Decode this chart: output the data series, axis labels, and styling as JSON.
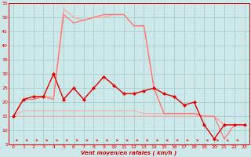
{
  "x": [
    0,
    1,
    2,
    3,
    4,
    5,
    6,
    7,
    8,
    9,
    10,
    11,
    12,
    13,
    14,
    15,
    16,
    17,
    18,
    19,
    20,
    21,
    22,
    23
  ],
  "line_top_light": [
    15,
    21,
    21,
    22,
    22,
    53,
    50,
    49,
    50,
    50,
    51,
    51,
    47,
    47,
    25,
    16,
    16,
    16,
    16,
    15,
    15,
    12,
    12,
    12
  ],
  "line_top_medium": [
    15,
    21,
    21,
    22,
    21,
    51,
    48,
    49,
    50,
    51,
    51,
    51,
    47,
    47,
    25,
    16,
    16,
    16,
    16,
    15,
    15,
    7,
    12,
    12
  ],
  "line_mid_dark": [
    15,
    21,
    22,
    22,
    30,
    21,
    25,
    21,
    25,
    29,
    26,
    23,
    23,
    24,
    25,
    23,
    22,
    19,
    20,
    12,
    7,
    12,
    12,
    12
  ],
  "line_lower1": [
    15,
    17,
    17,
    17,
    17,
    17,
    17,
    17,
    17,
    17,
    17,
    17,
    17,
    16,
    16,
    16,
    16,
    16,
    16,
    15,
    15,
    12,
    12,
    12
  ],
  "line_lower2": [
    15,
    15,
    15,
    15,
    15,
    15,
    15,
    15,
    15,
    15,
    15,
    15,
    15,
    15,
    15,
    15,
    15,
    15,
    15,
    15,
    15,
    12,
    12,
    12
  ],
  "ylim": [
    5,
    55
  ],
  "xlim": [
    -0.5,
    23.5
  ],
  "yticks": [
    5,
    10,
    15,
    20,
    25,
    30,
    35,
    40,
    45,
    50,
    55
  ],
  "xticks": [
    0,
    1,
    2,
    3,
    4,
    5,
    6,
    7,
    8,
    9,
    10,
    11,
    12,
    13,
    14,
    15,
    16,
    17,
    18,
    19,
    20,
    21,
    22,
    23
  ],
  "xlabel": "Vent moyen/en rafales ( km/h )",
  "bg_color": "#cce8e8",
  "grid_color": "#aacccc",
  "color_light": "#ffaaaa",
  "color_dark": "#dd0000",
  "color_medium": "#ff7777",
  "color_lower": "#ffcccc"
}
